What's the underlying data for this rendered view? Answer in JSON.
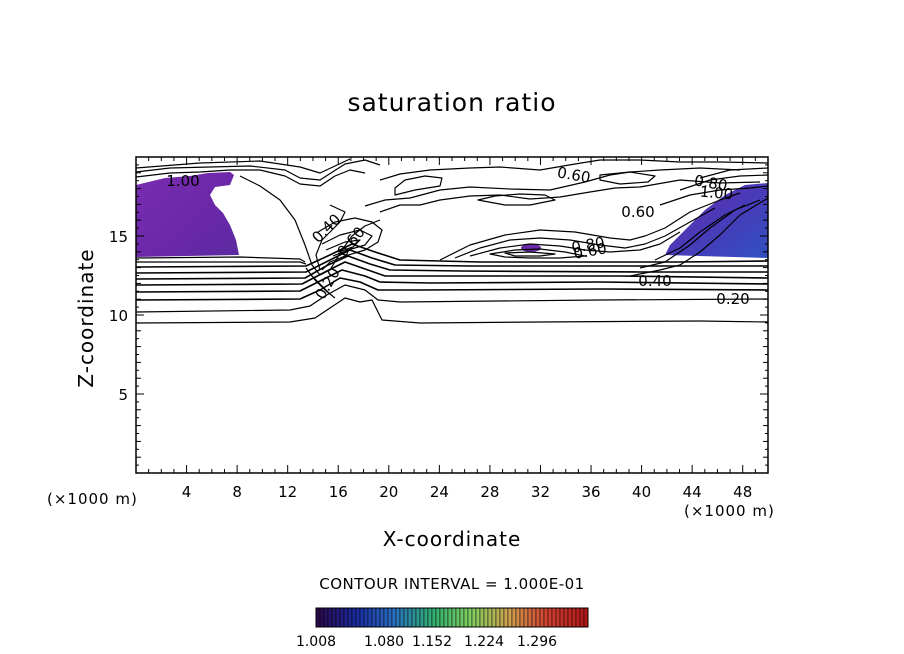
{
  "chart_data": {
    "type": "contour",
    "title": "saturation ratio",
    "xlabel": "X-coordinate",
    "ylabel": "Z-coordinate",
    "x_unit": "(×1000 m)",
    "y_unit": "(×1000 m)",
    "xlim": [
      0,
      50
    ],
    "ylim": [
      0,
      20
    ],
    "x_ticks": [
      4,
      8,
      12,
      16,
      20,
      24,
      28,
      32,
      36,
      40,
      44,
      48
    ],
    "y_ticks": [
      5,
      10,
      15
    ],
    "contour_interval_label": "CONTOUR INTERVAL = 1.000E-01",
    "contour_levels": [
      0.1,
      0.2,
      0.3,
      0.4,
      0.5,
      0.6,
      0.7,
      0.8,
      0.9,
      1.0
    ],
    "contour_labels": [
      "1.00",
      "0.60",
      "0.80",
      "1.00",
      "0.60",
      "0.40",
      "0.20",
      "0.80",
      "0.60",
      "0.40",
      "0.20",
      "0.60"
    ],
    "shaded_regions": [
      {
        "name": "left supersaturated region",
        "x_range": [
          0,
          8
        ],
        "z_range": [
          13.5,
          18.5
        ]
      },
      {
        "name": "right supersaturated region",
        "x_range": [
          42.5,
          50
        ],
        "z_range": [
          13.5,
          18.2
        ]
      },
      {
        "name": "small central cell",
        "x_range": [
          30.5,
          31.8
        ],
        "z_range": [
          14,
          14.4
        ]
      }
    ],
    "colorbar": {
      "ticks": [
        "1.008",
        "1.080",
        "1.152",
        "1.224",
        "1.296"
      ],
      "colors": [
        "#2a0a4a",
        "#1a2aa0",
        "#2a70c0",
        "#30b070",
        "#80d060",
        "#d0a050",
        "#d04030",
        "#b01818"
      ]
    }
  },
  "unit_left": "(×1000 m)",
  "unit_right": "(×1000 m)"
}
